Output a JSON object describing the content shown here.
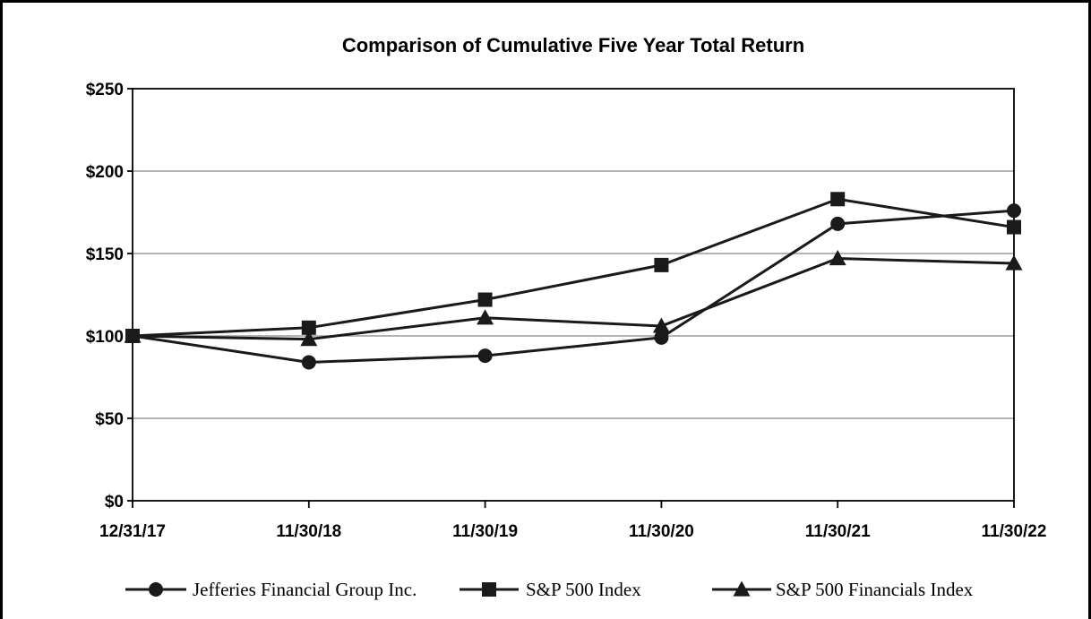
{
  "chart_data": {
    "type": "line",
    "title": "Comparison of Cumulative Five Year Total Return",
    "xlabel": "",
    "ylabel": "",
    "categories": [
      "12/31/17",
      "11/30/18",
      "11/30/19",
      "11/30/20",
      "11/30/21",
      "11/30/22"
    ],
    "ylim": [
      0,
      250
    ],
    "yticks": [
      0,
      50,
      100,
      150,
      200,
      250
    ],
    "ytick_labels": [
      "$0",
      "$50",
      "$100",
      "$150",
      "$200",
      "$250"
    ],
    "grid": true,
    "legend_position": "bottom",
    "series": [
      {
        "name": "Jefferies Financial Group Inc.",
        "marker": "circle",
        "values": [
          100,
          84,
          88,
          99,
          168,
          176
        ]
      },
      {
        "name": "S&P 500 Index",
        "marker": "square",
        "values": [
          100,
          105,
          122,
          143,
          183,
          166
        ]
      },
      {
        "name": "S&P 500 Financials Index",
        "marker": "triangle",
        "values": [
          100,
          98,
          111,
          106,
          147,
          144
        ]
      }
    ]
  }
}
